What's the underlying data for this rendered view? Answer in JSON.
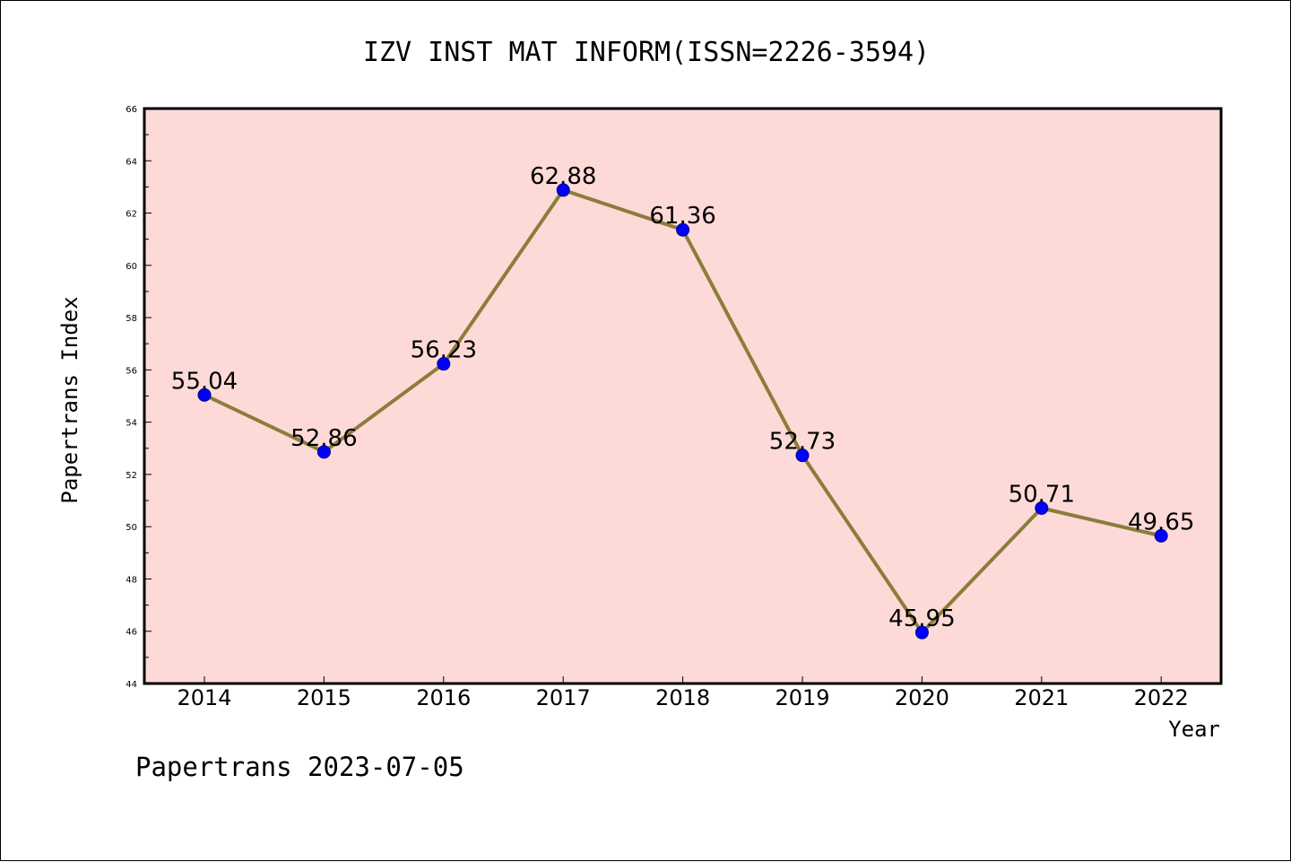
{
  "chart_data": {
    "type": "line",
    "title": "IZV INST MAT INFORM(ISSN=2226-3594)",
    "xlabel": "Year",
    "ylabel": "Papertrans Index",
    "categories": [
      "2014",
      "2015",
      "2016",
      "2017",
      "2018",
      "2019",
      "2020",
      "2021",
      "2022"
    ],
    "values": [
      55.04,
      52.86,
      56.23,
      62.88,
      61.36,
      52.73,
      45.95,
      50.71,
      49.65
    ],
    "data_labels": [
      "55.04",
      "52.86",
      "56.23",
      "62.88",
      "61.36",
      "52.73",
      "45.95",
      "50.71",
      "49.65"
    ],
    "ylim": [
      44,
      66
    ],
    "yticks": [
      "44",
      "46",
      "48",
      "50",
      "52",
      "54",
      "56",
      "58",
      "60",
      "62",
      "64",
      "66"
    ],
    "grid": false,
    "legend": "none",
    "colors": {
      "plot_background": "#fddad8",
      "line": "#8b7d3a",
      "marker": "#0000ff"
    }
  },
  "footer": "Papertrans 2023-07-05"
}
